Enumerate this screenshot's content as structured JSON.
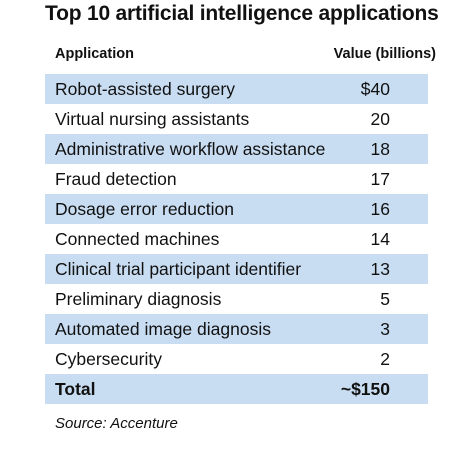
{
  "chart_data": {
    "type": "table",
    "title": "Top 10 artificial intelligence applications",
    "columns": [
      "Application",
      "Value (billions)"
    ],
    "rows": [
      {
        "application": "Robot-assisted surgery",
        "value_label": "$40",
        "value": 40
      },
      {
        "application": "Virtual nursing assistants",
        "value_label": "20",
        "value": 20
      },
      {
        "application": "Administrative workflow assistance",
        "value_label": "18",
        "value": 18
      },
      {
        "application": "Fraud detection",
        "value_label": "17",
        "value": 17
      },
      {
        "application": "Dosage error reduction",
        "value_label": "16",
        "value": 16
      },
      {
        "application": "Connected machines",
        "value_label": "14",
        "value": 14
      },
      {
        "application": "Clinical trial participant identifier",
        "value_label": "13",
        "value": 13
      },
      {
        "application": "Preliminary diagnosis",
        "value_label": "5",
        "value": 5
      },
      {
        "application": "Automated image diagnosis",
        "value_label": "3",
        "value": 3
      },
      {
        "application": "Cybersecurity",
        "value_label": "2",
        "value": 2
      }
    ],
    "total": {
      "label": "Total",
      "value_label": "~$150"
    },
    "source": "Source: Accenture",
    "row_shading_color": "#c9ddf2"
  }
}
